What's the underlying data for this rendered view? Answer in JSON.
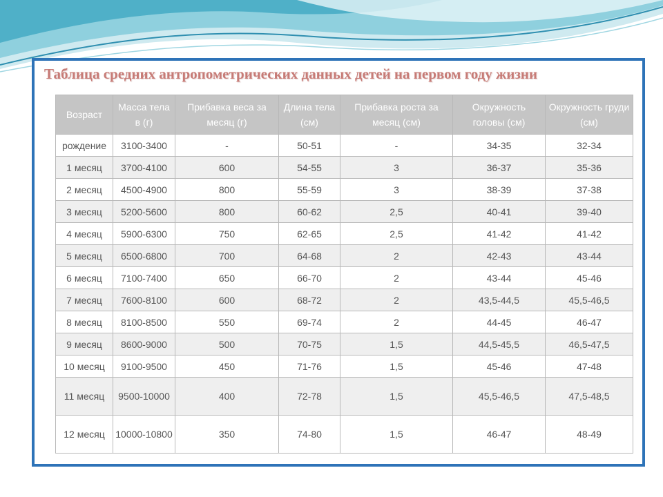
{
  "title": "Таблица средних антропометрических данных детей на первом году жизни",
  "columns": [
    "Возраст",
    "Масса тела в (г)",
    "Прибавка веса за месяц (г)",
    "Длина тела (см)",
    "Прибавка роста за месяц (см)",
    "Окружность головы (см)",
    "Окружность груди (см)"
  ],
  "rows": [
    [
      "рождение",
      "3100-3400",
      "-",
      "50-51",
      "-",
      "34-35",
      "32-34"
    ],
    [
      "1 месяц",
      "3700-4100",
      "600",
      "54-55",
      "3",
      "36-37",
      "35-36"
    ],
    [
      "2 месяц",
      "4500-4900",
      "800",
      "55-59",
      "3",
      "38-39",
      "37-38"
    ],
    [
      "3 месяц",
      "5200-5600",
      "800",
      "60-62",
      "2,5",
      "40-41",
      "39-40"
    ],
    [
      "4 месяц",
      "5900-6300",
      "750",
      "62-65",
      "2,5",
      "41-42",
      "41-42"
    ],
    [
      "5 месяц",
      "6500-6800",
      "700",
      "64-68",
      "2",
      "42-43",
      "43-44"
    ],
    [
      "6 месяц",
      "7100-7400",
      "650",
      "66-70",
      "2",
      "43-44",
      "45-46"
    ],
    [
      "7 месяц",
      "7600-8100",
      "600",
      "68-72",
      "2",
      "43,5-44,5",
      "45,5-46,5"
    ],
    [
      "8 месяц",
      "8100-8500",
      "550",
      "69-74",
      "2",
      "44-45",
      "46-47"
    ],
    [
      "9 месяц",
      "8600-9000",
      "500",
      "70-75",
      "1,5",
      "44,5-45,5",
      "46,5-47,5"
    ],
    [
      "10 месяц",
      "9100-9500",
      "450",
      "71-76",
      "1,5",
      "45-46",
      "47-48"
    ],
    [
      "11 месяц",
      "9500-10000",
      "400",
      "72-78",
      "1,5",
      "45,5-46,5",
      "47,5-48,5"
    ],
    [
      "12 месяц",
      "10000-10800",
      "350",
      "74-80",
      "1,5",
      "46-47",
      "48-49"
    ]
  ],
  "colors": {
    "frame": "#2e73b8",
    "title": "#c77b76",
    "header_bg": "#c5c5c5",
    "wave_light": "#bfe3ea",
    "wave_mid": "#7cc6d6",
    "wave_dark": "#3a9cb8"
  }
}
